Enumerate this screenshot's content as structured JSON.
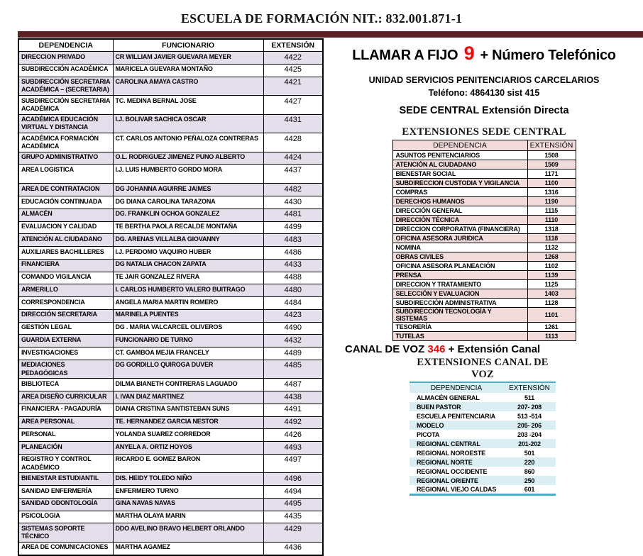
{
  "page": {
    "title": "ESCUELA DE FORMACIÓN  NIT.: 832.001.871-1"
  },
  "colors": {
    "title_bar_maroon": "#5B2223",
    "staff_row_lavender": "#E5DFEC",
    "sede_row_pink": "#F2DBDB",
    "canal_row_blue": "#DAEEF3",
    "canal_border_teal": "#4BACC6",
    "highlight_red": "#FF0000"
  },
  "staff_table": {
    "headers": [
      "DEPENDENCIA",
      "FUNCIONARIO",
      "EXTENSIÓN"
    ],
    "rows": [
      {
        "d": "DIRECCION PRIVADO",
        "f": "CR  WILLIAM JAVIER GUEVARA MEYER",
        "e": "4422"
      },
      {
        "d": "SUBDIRECCIÓN ACADÉMICA",
        "f": "MARICELA GUEVARA MONTAÑO",
        "e": "4425"
      },
      {
        "d": "SUBDIRECCIÓN SECRETARIA ACADÉMICA – (SECRETARIA)",
        "f": "CAROLINA AMAYA CASTRO",
        "e": "4421"
      },
      {
        "d": "SUBDIRECCIÓN SECRETARIA ACADÉMICA",
        "f": "TC.  MEDINA BERNAL JOSE",
        "e": "4427"
      },
      {
        "d": "ACADÉMICA EDUCACIÓN VIRTUAL Y DISTANCIA",
        "f": "I.J.  BOLIVAR SACHICA OSCAR",
        "e": "4431"
      },
      {
        "d": "ACADÉMICA FORMACIÓN ACADÉMICA",
        "f": "CT. CARLOS ANTONIO  PEÑALOZA CONTRERAS",
        "e": "4428"
      },
      {
        "d": "GRUPO ADMINISTRATIVO",
        "f": "O.L. RODRIGUEZ JIMENEZ PUNO ALBERTO",
        "e": "4424"
      },
      {
        "d": "AREA LOGISTICA",
        "f": "I.J. LUIS HUMBERTO GORDO MORA",
        "e": "4437",
        "tall": true
      },
      {
        "d": "AREA DE CONTRATACION",
        "f": "DG JOHANNA AGUIRRE JAIMES",
        "e": "4482"
      },
      {
        "d": "EDUCACIÓN CONTINUADA",
        "f": "DG DIANA CAROLINA TARAZONA",
        "e": "4430"
      },
      {
        "d": "ALMACÉN",
        "f": "DG. FRANKLIN OCHOA GONZALEZ",
        "e": "4481"
      },
      {
        "d": "EVALUACION Y CALIDAD",
        "f": "TE BERTHA PAOLA RECALDE MONTAÑA",
        "e": "4499"
      },
      {
        "d": "ATENCIÓN AL CIUDADANO",
        "f": "DG. ARENAS VILLALBA GIOVANNY",
        "e": "4483"
      },
      {
        "d": "AUXILIARES BACHILLERES",
        "f": "I.J. PERDOMO VAQUIRO HUBER",
        "e": "4486"
      },
      {
        "d": "FINANCIERA",
        "f": "DG NATALIA CHACON ZAPATA",
        "e": "4433"
      },
      {
        "d": "COMANDO VIGILANCIA",
        "f": "TE JAIR GONZALEZ RIVERA",
        "e": "4488"
      },
      {
        "d": "ARMERILLO",
        "f": "I. CARLOS HUMBERTO VALERO BUITRAGO",
        "e": "4480"
      },
      {
        "d": "CORRESPONDENCIA",
        "f": "ANGELA  MARIA MARTIN ROMERO",
        "e": "4484"
      },
      {
        "d": "DIRECCIÓN SECRETARIA",
        "f": "MARINELA PUENTES",
        "e": "4423"
      },
      {
        "d": "GESTIÓN LEGAL",
        "f": "DG . MARIA VALCARCEL OLIVEROS",
        "e": "4490"
      },
      {
        "d": "GUARDIA EXTERNA",
        "f": "FUNCIONARIO DE TURNO",
        "e": "4432"
      },
      {
        "d": "INVESTIGACIONES",
        "f": "CT. GAMBOA MEJIA FRANCELY",
        "e": "4489"
      },
      {
        "d": "MEDIACIONES PEDAGÓGICAS",
        "f": "DG GORDILLO QUIROGA DUVER",
        "e": "4485"
      },
      {
        "d": "BIBLIOTECA",
        "f": "DILMA BIANETH CONTRERAS LAGUADO",
        "e": "4487"
      },
      {
        "d": "AREA DISEÑO CURRICULAR",
        "f": "I. IVAN DIAZ MARTINEZ",
        "e": "4438"
      },
      {
        "d": "FINANCIERA - PAGADURÍA",
        "f": "DIANA CRISTINA SANTISTEBAN SUNS",
        "e": "4491"
      },
      {
        "d": "AREA PERSONAL",
        "f": "TE. HERNANDEZ GARCIA NESTOR",
        "e": "4492"
      },
      {
        "d": "PERSONAL",
        "f": "YOLANDA SUAREZ CORREDOR",
        "e": "4426"
      },
      {
        "d": "PLANEACIÓN",
        "f": "ANYELA A. ORTIZ HOYOS",
        "e": "4493"
      },
      {
        "d": "REGISTRO Y CONTROL ACADÉMICO",
        "f": "RICARDO E. GOMEZ BARON",
        "e": "4497"
      },
      {
        "d": "BIENESTAR ESTUDIANTIL",
        "f": "DIS. HEIDY TOLEDO NIÑO",
        "e": "4496"
      },
      {
        "d": "SANIDAD ENFERMERÍA",
        "f": "ENFERMERO TURNO",
        "e": "4494"
      },
      {
        "d": "SANIDAD ODONTOLOGÍA",
        "f": "GINA NAVAS NAVAS",
        "e": "4495"
      },
      {
        "d": "PSICOLOGIA",
        "f": "MARTHA OLAYA MARIN",
        "e": "4435"
      },
      {
        "d": "SISTEMAS   SOPORTE TÉCNICO",
        "f": "DDO AVELINO BRAVO HELBERT ORLANDO",
        "e": "4429"
      },
      {
        "d": "AREA DE COMUNICACIONES",
        "f": "MARTHA AGAMEZ",
        "e": "4436"
      }
    ]
  },
  "right_panel": {
    "llamar": {
      "prefix": "LLAMAR A FIJO ",
      "number": "9",
      "suffix": " + Número Telefónico"
    },
    "unidad_line1": "UNIDAD SERVICIOS PENITENCIARIOS CARCELARIOS",
    "unidad_line2": "Teléfono: 4864130  sist 415",
    "sede_line": "SEDE CENTRAL Extensión Directa",
    "sede_table": {
      "title": "EXTENSIONES SEDE CENTRAL",
      "headers": [
        "DEPENDENCIA",
        "EXTENSIÓN"
      ],
      "rows": [
        {
          "d": "ASUNTOS PENITENCIARIOS",
          "e": "1508"
        },
        {
          "d": "ATENCIÓN AL CIUDADANO",
          "e": "1509"
        },
        {
          "d": "BIENESTAR SOCIAL",
          "e": "1171"
        },
        {
          "d": "SUBDIRECCION CUSTODIA Y VIGILANCIA",
          "e": "1100"
        },
        {
          "d": "COMPRAS",
          "e": "1316"
        },
        {
          "d": "DERECHOS HUMANOS",
          "e": "1190"
        },
        {
          "d": "DIRECCIÓN GENERAL",
          "e": "1115"
        },
        {
          "d": "DIRECCIÓN TÉCNICA",
          "e": "1110"
        },
        {
          "d": "DIRECCION CORPORATIVA (FINANCIERA)",
          "e": "1318"
        },
        {
          "d": "OFICINA ASESORA JURIDICA",
          "e": "1118"
        },
        {
          "d": "NOMINA",
          "e": "1132"
        },
        {
          "d": "OBRAS CIVILES",
          "e": "1268"
        },
        {
          "d": "OFICINA ASESORA PLANEACIÓN",
          "e": "1102"
        },
        {
          "d": "PRENSA",
          "e": "1139"
        },
        {
          "d": "DIRECCION Y TRATAMIENTO",
          "e": "1125"
        },
        {
          "d": "SELECCIÓN Y EVALUACION",
          "e": "1403"
        },
        {
          "d": "SUBDIRECCIÓN ADMINISTRATIVA",
          "e": "1128"
        },
        {
          "d": "SUBDIRECCIÓN TECNOLOGÍA Y SISTEMAS",
          "e": "1101"
        },
        {
          "d": "TESORERÍA",
          "e": "1261"
        },
        {
          "d": "TUTELAS",
          "e": "1113"
        }
      ]
    },
    "canal": {
      "prefix": "CANAL DE VOZ ",
      "number": "346",
      "suffix": " + Extensión Canal"
    },
    "canal_table": {
      "title": "EXTENSIONES CANAL DE VOZ",
      "headers": [
        "DEPENDENCIA",
        "EXTENSIÓN"
      ],
      "rows": [
        {
          "d": "ALMACÉN GENERAL",
          "e": "511"
        },
        {
          "d": "BUEN PASTOR",
          "e": "207- 208"
        },
        {
          "d": "ESCUELA PENITENCIARIA",
          "e": "513 -514"
        },
        {
          "d": "MODELO",
          "e": "205- 206"
        },
        {
          "d": "PICOTA",
          "e": "203 -204"
        },
        {
          "d": "REGIONAL CENTRAL",
          "e": "201-202"
        },
        {
          "d": "REGIONAL NOROESTE",
          "e": "501"
        },
        {
          "d": "REGIONAL NORTE",
          "e": "220"
        },
        {
          "d": "REGIONAL OCCIDENTE",
          "e": "860"
        },
        {
          "d": "REGIONAL ORIENTE",
          "e": "250"
        },
        {
          "d": "REGIONAL VIEJO CALDAS",
          "e": "601"
        }
      ]
    }
  }
}
